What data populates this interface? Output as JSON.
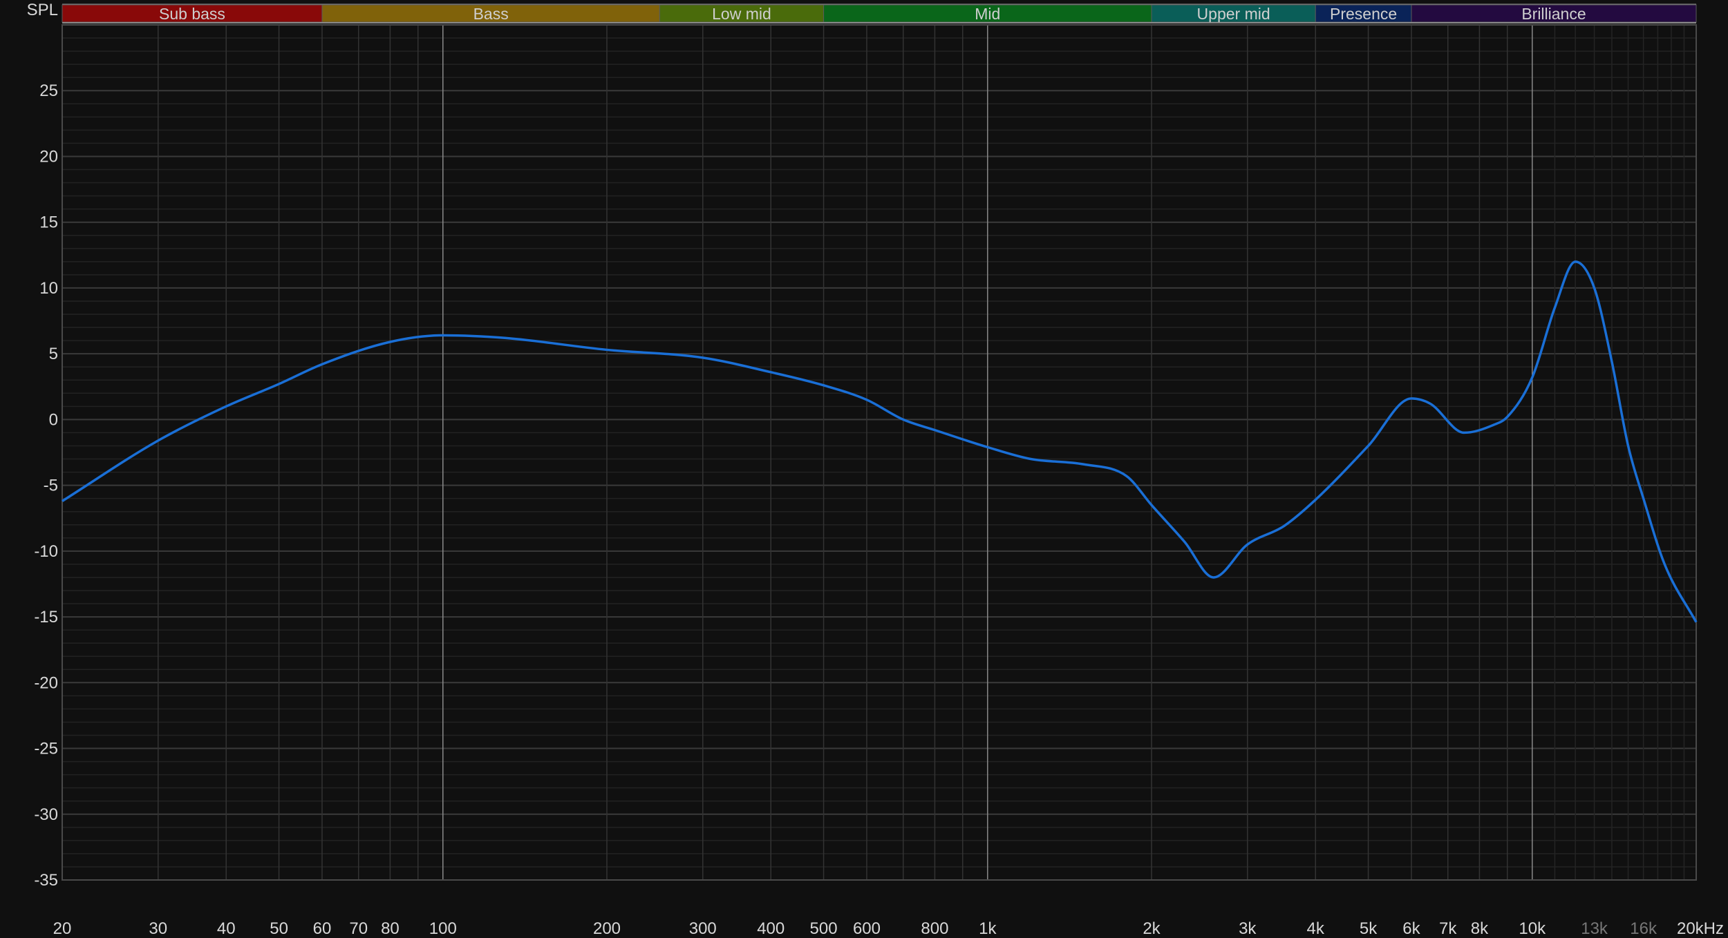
{
  "chart_data": {
    "type": "line",
    "title": "",
    "ylabel": "SPL",
    "xlabel": "",
    "x_scale": "log",
    "xlim": [
      20,
      20000
    ],
    "ylim": [
      -35,
      30
    ],
    "grid": true,
    "y_ticks": [
      25,
      20,
      15,
      10,
      5,
      0,
      -5,
      -10,
      -15,
      -20,
      -25,
      -30,
      -35
    ],
    "x_ticks": [
      {
        "value": 20,
        "label": "20"
      },
      {
        "value": 30,
        "label": "30"
      },
      {
        "value": 40,
        "label": "40"
      },
      {
        "value": 50,
        "label": "50"
      },
      {
        "value": 60,
        "label": "60"
      },
      {
        "value": 70,
        "label": "70"
      },
      {
        "value": 80,
        "label": "80"
      },
      {
        "value": 100,
        "label": "100"
      },
      {
        "value": 200,
        "label": "200"
      },
      {
        "value": 300,
        "label": "300"
      },
      {
        "value": 400,
        "label": "400"
      },
      {
        "value": 500,
        "label": "500"
      },
      {
        "value": 600,
        "label": "600"
      },
      {
        "value": 800,
        "label": "800"
      },
      {
        "value": 1000,
        "label": "1k"
      },
      {
        "value": 2000,
        "label": "2k"
      },
      {
        "value": 3000,
        "label": "3k"
      },
      {
        "value": 4000,
        "label": "4k"
      },
      {
        "value": 5000,
        "label": "5k"
      },
      {
        "value": 6000,
        "label": "6k"
      },
      {
        "value": 7000,
        "label": "7k"
      },
      {
        "value": 8000,
        "label": "8k"
      },
      {
        "value": 10000,
        "label": "10k"
      },
      {
        "value": 13000,
        "label": "13k",
        "dim": true
      },
      {
        "value": 16000,
        "label": "16k",
        "dim": true
      },
      {
        "value": 20000,
        "label": "20kHz"
      }
    ],
    "bands": [
      {
        "label": "Sub bass",
        "from": 20,
        "to": 60,
        "color": "#890909"
      },
      {
        "label": "Bass",
        "from": 60,
        "to": 250,
        "color": "#80620a"
      },
      {
        "label": "Low mid",
        "from": 250,
        "to": 500,
        "color": "#4a6b0b"
      },
      {
        "label": "Mid",
        "from": 500,
        "to": 2000,
        "color": "#0a661a"
      },
      {
        "label": "Upper mid",
        "from": 2000,
        "to": 4000,
        "color": "#0a5e58"
      },
      {
        "label": "Presence",
        "from": 4000,
        "to": 6000,
        "color": "#0a2358"
      },
      {
        "label": "Brilliance",
        "from": 6000,
        "to": 20000,
        "color": "#230a40"
      }
    ],
    "series": [
      {
        "color": "#1a6fd6",
        "x": [
          20,
          30,
          40,
          50,
          60,
          80,
          100,
          130,
          200,
          300,
          400,
          500,
          600,
          700,
          800,
          1000,
          1200,
          1500,
          1800,
          2000,
          2300,
          2600,
          3000,
          3500,
          4000,
          5000,
          6000,
          6500,
          7500,
          8500,
          9000,
          10000,
          11000,
          12000,
          13000,
          14000,
          15000,
          16000,
          17500,
          20000
        ],
        "y": [
          -6.2,
          -1.6,
          1.0,
          2.7,
          4.2,
          5.9,
          6.4,
          6.2,
          5.3,
          4.7,
          3.6,
          2.6,
          1.5,
          0.0,
          -0.8,
          -2.1,
          -3.0,
          -3.4,
          -4.3,
          -6.5,
          -9.3,
          -12.0,
          -9.5,
          -8.1,
          -6.1,
          -2.0,
          1.6,
          1.2,
          -1.0,
          -0.4,
          0.2,
          3.2,
          8.5,
          12.0,
          10.0,
          4.4,
          -2.0,
          -6.0,
          -11.0,
          -15.4
        ]
      }
    ]
  }
}
